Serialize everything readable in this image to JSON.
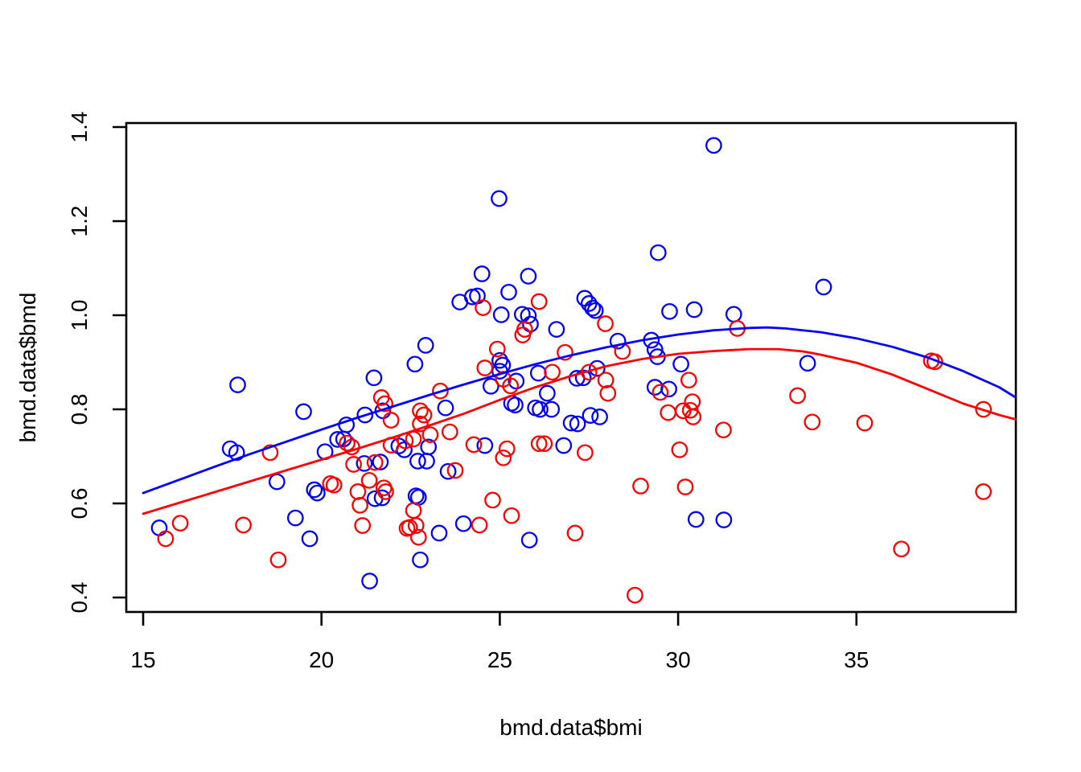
{
  "figure": {
    "background": "#ffffff",
    "axis_color": "#000000"
  },
  "chart_data": {
    "type": "scatter",
    "title": "",
    "xlabel": "bmd.data$bmi",
    "ylabel": "bmd.data$bmd",
    "xlim": [
      14.53,
      39.47
    ],
    "ylim": [
      0.369,
      1.409
    ],
    "grid": false,
    "legend": "none",
    "x_ticks": [
      "15",
      "20",
      "25",
      "30",
      "35"
    ],
    "x_tick_values": [
      15,
      20,
      25,
      30,
      35
    ],
    "y_ticks": [
      "0.4",
      "0.6",
      "0.8",
      "1.0",
      "1.2",
      "1.4"
    ],
    "y_tick_values": [
      0.4,
      0.6,
      0.8,
      1.0,
      1.2,
      1.4
    ],
    "series": [
      {
        "name": "blue-group",
        "color": "#0000FF",
        "marker": "open-circle",
        "points": [
          [
            15.45,
            0.548
          ],
          [
            17.44,
            0.716
          ],
          [
            17.62,
            0.708
          ],
          [
            17.65,
            0.852
          ],
          [
            18.75,
            0.646
          ],
          [
            19.27,
            0.569
          ],
          [
            19.5,
            0.795
          ],
          [
            19.67,
            0.525
          ],
          [
            19.8,
            0.629
          ],
          [
            19.88,
            0.622
          ],
          [
            20.1,
            0.71
          ],
          [
            20.45,
            0.736
          ],
          [
            20.62,
            0.737
          ],
          [
            20.7,
            0.767
          ],
          [
            21.2,
            0.685
          ],
          [
            21.22,
            0.788
          ],
          [
            21.35,
            0.435
          ],
          [
            21.47,
            0.867
          ],
          [
            21.5,
            0.61
          ],
          [
            21.65,
            0.688
          ],
          [
            21.7,
            0.612
          ],
          [
            21.72,
            0.797
          ],
          [
            22.17,
            0.722
          ],
          [
            22.32,
            0.714
          ],
          [
            22.62,
            0.896
          ],
          [
            22.65,
            0.616
          ],
          [
            22.72,
            0.613
          ],
          [
            22.7,
            0.69
          ],
          [
            22.77,
            0.48
          ],
          [
            22.92,
            0.936
          ],
          [
            22.95,
            0.69
          ],
          [
            23.0,
            0.72
          ],
          [
            23.3,
            0.537
          ],
          [
            23.48,
            0.803
          ],
          [
            23.55,
            0.668
          ],
          [
            23.88,
            1.028
          ],
          [
            23.98,
            0.557
          ],
          [
            24.23,
            1.039
          ],
          [
            24.37,
            1.041
          ],
          [
            24.5,
            1.088
          ],
          [
            24.58,
            0.723
          ],
          [
            24.75,
            0.849
          ],
          [
            24.98,
            1.248
          ],
          [
            25.0,
            0.904
          ],
          [
            25.0,
            0.881
          ],
          [
            25.04,
            1.001
          ],
          [
            25.08,
            0.894
          ],
          [
            25.25,
            1.049
          ],
          [
            25.33,
            0.813
          ],
          [
            25.43,
            0.809
          ],
          [
            25.46,
            0.86
          ],
          [
            25.63,
            1.002
          ],
          [
            25.8,
            0.999
          ],
          [
            25.8,
            1.083
          ],
          [
            25.83,
            0.522
          ],
          [
            25.86,
            0.981
          ],
          [
            26.0,
            0.803
          ],
          [
            26.08,
            0.877
          ],
          [
            26.13,
            0.8
          ],
          [
            26.33,
            0.834
          ],
          [
            26.45,
            0.8
          ],
          [
            26.59,
            0.97
          ],
          [
            26.79,
            0.723
          ],
          [
            27.0,
            0.771
          ],
          [
            27.16,
            0.866
          ],
          [
            27.18,
            0.769
          ],
          [
            27.34,
            0.867
          ],
          [
            27.38,
            1.036
          ],
          [
            27.5,
            1.025
          ],
          [
            27.54,
            0.787
          ],
          [
            27.6,
            1.015
          ],
          [
            27.68,
            1.01
          ],
          [
            27.73,
            0.887
          ],
          [
            27.8,
            0.784
          ],
          [
            28.31,
            0.945
          ],
          [
            29.25,
            0.947
          ],
          [
            29.35,
            0.927
          ],
          [
            29.42,
            0.912
          ],
          [
            29.35,
            0.847
          ],
          [
            29.44,
            1.133
          ],
          [
            29.74,
            0.843
          ],
          [
            29.76,
            1.008
          ],
          [
            30.08,
            0.896
          ],
          [
            30.45,
            1.012
          ],
          [
            30.5,
            0.566
          ],
          [
            31.0,
            1.361
          ],
          [
            31.28,
            0.565
          ],
          [
            31.56,
            1.002
          ],
          [
            33.63,
            0.898
          ],
          [
            34.08,
            1.06
          ]
        ]
      },
      {
        "name": "red-group",
        "color": "#FF0000",
        "marker": "open-circle",
        "points": [
          [
            15.63,
            0.525
          ],
          [
            16.04,
            0.558
          ],
          [
            17.81,
            0.554
          ],
          [
            18.56,
            0.708
          ],
          [
            18.79,
            0.48
          ],
          [
            20.25,
            0.642
          ],
          [
            20.35,
            0.639
          ],
          [
            20.72,
            0.728
          ],
          [
            20.85,
            0.72
          ],
          [
            20.9,
            0.683
          ],
          [
            21.02,
            0.625
          ],
          [
            21.08,
            0.596
          ],
          [
            21.15,
            0.553
          ],
          [
            21.34,
            0.649
          ],
          [
            21.5,
            0.687
          ],
          [
            21.68,
            0.825
          ],
          [
            21.75,
            0.633
          ],
          [
            21.78,
            0.812
          ],
          [
            21.8,
            0.625
          ],
          [
            21.95,
            0.777
          ],
          [
            21.95,
            0.724
          ],
          [
            22.35,
            0.733
          ],
          [
            22.4,
            0.547
          ],
          [
            22.47,
            0.549
          ],
          [
            22.58,
            0.737
          ],
          [
            22.58,
            0.585
          ],
          [
            22.65,
            0.553
          ],
          [
            22.72,
            0.528
          ],
          [
            22.77,
            0.797
          ],
          [
            22.77,
            0.769
          ],
          [
            22.87,
            0.788
          ],
          [
            23.05,
            0.746
          ],
          [
            23.33,
            0.839
          ],
          [
            23.6,
            0.752
          ],
          [
            23.75,
            0.67
          ],
          [
            24.27,
            0.725
          ],
          [
            24.43,
            0.554
          ],
          [
            24.53,
            1.016
          ],
          [
            24.58,
            0.888
          ],
          [
            24.8,
            0.607
          ],
          [
            24.93,
            0.928
          ],
          [
            25.1,
            0.864
          ],
          [
            25.1,
            0.697
          ],
          [
            25.2,
            0.716
          ],
          [
            25.3,
            0.85
          ],
          [
            25.33,
            0.574
          ],
          [
            25.64,
            0.958
          ],
          [
            25.7,
            0.97
          ],
          [
            26.1,
            1.029
          ],
          [
            26.1,
            0.727
          ],
          [
            26.25,
            0.727
          ],
          [
            26.47,
            0.879
          ],
          [
            26.83,
            0.921
          ],
          [
            27.11,
            0.537
          ],
          [
            27.39,
            0.708
          ],
          [
            27.5,
            0.879
          ],
          [
            27.96,
            0.982
          ],
          [
            27.97,
            0.862
          ],
          [
            28.03,
            0.834
          ],
          [
            28.44,
            0.923
          ],
          [
            28.79,
            0.405
          ],
          [
            28.95,
            0.637
          ],
          [
            29.5,
            0.836
          ],
          [
            29.72,
            0.793
          ],
          [
            30.04,
            0.714
          ],
          [
            30.14,
            0.797
          ],
          [
            30.2,
            0.635
          ],
          [
            30.3,
            0.862
          ],
          [
            30.34,
            0.798
          ],
          [
            30.4,
            0.816
          ],
          [
            30.42,
            0.784
          ],
          [
            31.27,
            0.756
          ],
          [
            31.66,
            0.972
          ],
          [
            33.35,
            0.829
          ],
          [
            33.76,
            0.773
          ],
          [
            35.23,
            0.771
          ],
          [
            36.26,
            0.503
          ],
          [
            37.1,
            0.903
          ],
          [
            37.2,
            0.901
          ],
          [
            38.56,
            0.8
          ],
          [
            38.56,
            0.625
          ]
        ]
      }
    ],
    "curves": [
      {
        "name": "blue-fit-line",
        "color": "#0000FF",
        "points": [
          [
            15,
            0.622
          ],
          [
            16,
            0.65
          ],
          [
            17,
            0.678
          ],
          [
            18,
            0.705
          ],
          [
            19,
            0.731
          ],
          [
            20,
            0.757
          ],
          [
            21,
            0.782
          ],
          [
            22,
            0.806
          ],
          [
            23,
            0.83
          ],
          [
            24,
            0.853
          ],
          [
            25,
            0.875
          ],
          [
            26,
            0.896
          ],
          [
            27,
            0.915
          ],
          [
            28,
            0.932
          ],
          [
            29,
            0.947
          ],
          [
            30,
            0.959
          ],
          [
            31,
            0.968
          ],
          [
            32,
            0.973
          ],
          [
            32.5,
            0.974
          ],
          [
            33,
            0.972
          ],
          [
            34,
            0.964
          ],
          [
            35,
            0.951
          ],
          [
            36,
            0.933
          ],
          [
            37,
            0.91
          ],
          [
            38,
            0.881
          ],
          [
            39,
            0.847
          ],
          [
            39.45,
            0.826
          ]
        ]
      },
      {
        "name": "red-fit-line",
        "color": "#FF0000",
        "points": [
          [
            15,
            0.578
          ],
          [
            16,
            0.601
          ],
          [
            17,
            0.624
          ],
          [
            18,
            0.647
          ],
          [
            19,
            0.67
          ],
          [
            20,
            0.693
          ],
          [
            21,
            0.716
          ],
          [
            22,
            0.74
          ],
          [
            23,
            0.765
          ],
          [
            24,
            0.791
          ],
          [
            25,
            0.82
          ],
          [
            26,
            0.847
          ],
          [
            27,
            0.871
          ],
          [
            28,
            0.892
          ],
          [
            29,
            0.907
          ],
          [
            30,
            0.918
          ],
          [
            31,
            0.924
          ],
          [
            32,
            0.928
          ],
          [
            32.8,
            0.928
          ],
          [
            33.5,
            0.923
          ],
          [
            34,
            0.916
          ],
          [
            35,
            0.899
          ],
          [
            36,
            0.874
          ],
          [
            37,
            0.843
          ],
          [
            38,
            0.812
          ],
          [
            39,
            0.788
          ],
          [
            39.45,
            0.779
          ]
        ]
      }
    ]
  }
}
